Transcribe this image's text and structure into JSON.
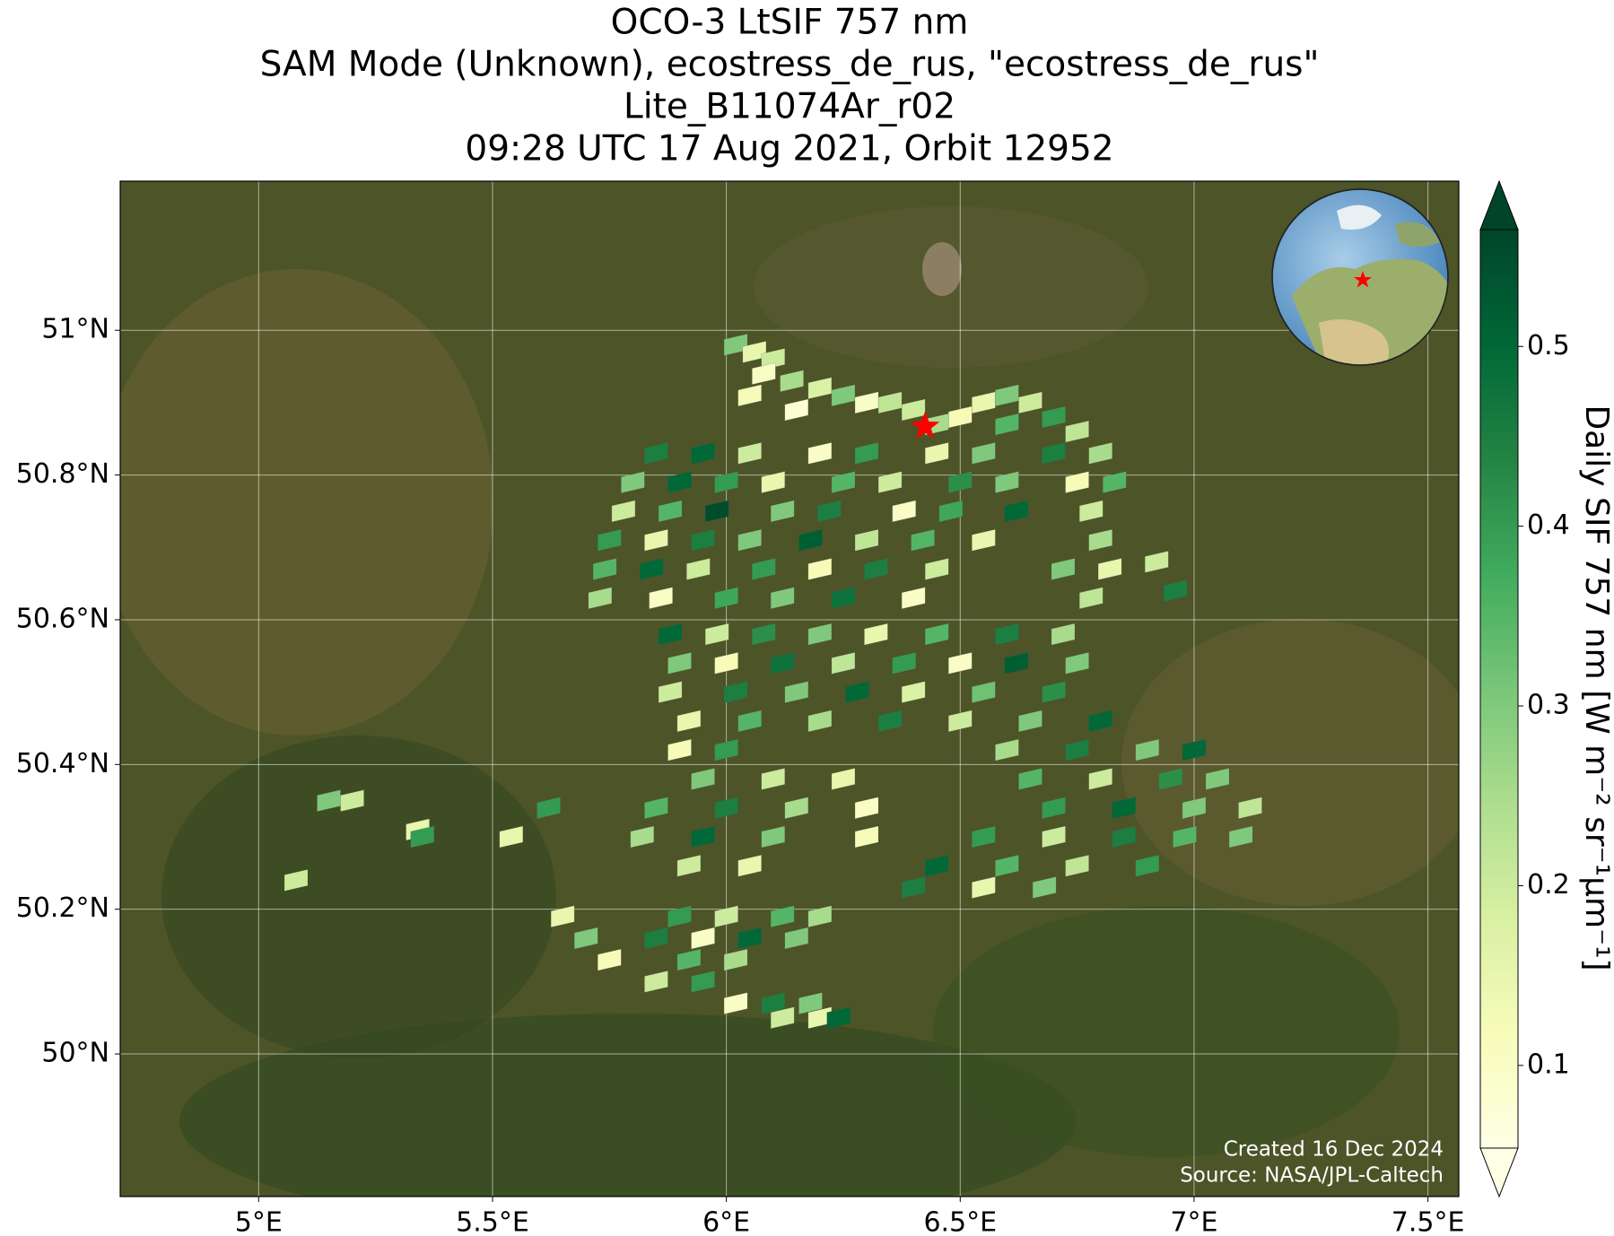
{
  "chart_data": {
    "type": "footprint-map",
    "title": [
      "OCO-3 LtSIF 757 nm",
      "SAM Mode (Unknown), ecostress_de_rus, \"ecostress_de_rus\"",
      "Lite_B11074Ar_r02",
      "09:28 UTC 17 Aug 2021, Orbit 12952"
    ],
    "xlim": [
      4.704,
      7.566
    ],
    "ylim": [
      49.803,
      51.206
    ],
    "xticks": [
      {
        "value": 5,
        "label": "5°E"
      },
      {
        "value": 5.5,
        "label": "5.5°E"
      },
      {
        "value": 6,
        "label": "6°E"
      },
      {
        "value": 6.5,
        "label": "6.5°E"
      },
      {
        "value": 7,
        "label": "7°E"
      },
      {
        "value": 7.5,
        "label": "7.5°E"
      }
    ],
    "yticks": [
      {
        "value": 50,
        "label": "50°N"
      },
      {
        "value": 50.2,
        "label": "50.2°N"
      },
      {
        "value": 50.4,
        "label": "50.4°N"
      },
      {
        "value": 50.6,
        "label": "50.6°N"
      },
      {
        "value": 50.8,
        "label": "50.8°N"
      },
      {
        "value": 51,
        "label": "51°N"
      }
    ],
    "grid": true,
    "colorbar": {
      "label": "Daily SIF 757 nm [W m⁻² sr⁻¹μm⁻¹]",
      "clim": [
        0.054,
        0.565
      ],
      "ticks": [
        0.1,
        0.2,
        0.3,
        0.4,
        0.5
      ],
      "colormap": [
        "#ffffe5",
        "#f7fcb9",
        "#d9f0a3",
        "#addd8e",
        "#78c679",
        "#41ab5d",
        "#238443",
        "#006837",
        "#004529"
      ]
    },
    "site": {
      "lon": 6.425,
      "lat": 50.867,
      "color": "#ff0000"
    },
    "footprints": {
      "lon": [
        6.02,
        6.06,
        6.1,
        6.08,
        6.14,
        6.2,
        6.05,
        6.25,
        6.3,
        6.35,
        6.15,
        6.4,
        6.55,
        6.6,
        6.65,
        6.7,
        6.5,
        6.45,
        6.6,
        6.75,
        5.85,
        5.95,
        6.05,
        6.2,
        6.3,
        6.45,
        6.55,
        6.7,
        6.8,
        5.8,
        5.9,
        6.0,
        6.1,
        6.25,
        6.35,
        6.5,
        6.6,
        6.75,
        6.83,
        5.78,
        5.88,
        5.98,
        6.12,
        6.22,
        6.38,
        6.48,
        6.62,
        6.78,
        5.75,
        5.85,
        5.95,
        6.05,
        6.18,
        6.3,
        6.42,
        6.55,
        6.8,
        5.74,
        5.84,
        5.94,
        6.08,
        6.2,
        6.32,
        6.45,
        6.72,
        6.82,
        5.73,
        5.86,
        6.0,
        6.12,
        6.25,
        6.4,
        6.78,
        5.88,
        5.98,
        6.08,
        6.2,
        6.32,
        6.45,
        6.6,
        6.72,
        5.9,
        6.0,
        6.12,
        6.25,
        6.38,
        6.5,
        6.62,
        6.75,
        5.88,
        6.02,
        6.15,
        6.28,
        6.4,
        6.55,
        6.7,
        5.92,
        6.05,
        6.2,
        6.35,
        6.5,
        6.65,
        6.8,
        5.9,
        6.0,
        6.6,
        6.75,
        6.9,
        7.0,
        5.95,
        6.1,
        6.25,
        6.65,
        6.8,
        6.95,
        7.05,
        5.85,
        6.0,
        6.15,
        6.3,
        6.7,
        6.85,
        7.0,
        7.12,
        5.82,
        5.95,
        6.1,
        6.3,
        6.55,
        6.7,
        6.85,
        6.98,
        7.1,
        5.92,
        6.05,
        6.45,
        6.6,
        6.75,
        6.9,
        6.4,
        6.55,
        6.68,
        5.65,
        5.9,
        6.0,
        6.12,
        6.2,
        5.7,
        5.85,
        5.95,
        6.05,
        6.15,
        5.75,
        5.92,
        6.02,
        5.85,
        5.95,
        6.02,
        6.1,
        6.18,
        6.12,
        6.2,
        6.24,
        5.15,
        5.2,
        5.34,
        5.35,
        5.08,
        5.62,
        5.54,
        6.92,
        6.96
      ],
      "lat": [
        50.98,
        50.97,
        50.96,
        50.94,
        50.93,
        50.92,
        50.91,
        50.91,
        50.9,
        50.9,
        50.89,
        50.89,
        50.9,
        50.91,
        50.9,
        50.88,
        50.88,
        50.87,
        50.87,
        50.86,
        50.83,
        50.83,
        50.83,
        50.83,
        50.83,
        50.83,
        50.83,
        50.83,
        50.83,
        50.79,
        50.79,
        50.79,
        50.79,
        50.79,
        50.79,
        50.79,
        50.79,
        50.79,
        50.79,
        50.75,
        50.75,
        50.75,
        50.75,
        50.75,
        50.75,
        50.75,
        50.75,
        50.75,
        50.71,
        50.71,
        50.71,
        50.71,
        50.71,
        50.71,
        50.71,
        50.71,
        50.71,
        50.67,
        50.67,
        50.67,
        50.67,
        50.67,
        50.67,
        50.67,
        50.67,
        50.67,
        50.63,
        50.63,
        50.63,
        50.63,
        50.63,
        50.63,
        50.63,
        50.58,
        50.58,
        50.58,
        50.58,
        50.58,
        50.58,
        50.58,
        50.58,
        50.54,
        50.54,
        50.54,
        50.54,
        50.54,
        50.54,
        50.54,
        50.54,
        50.5,
        50.5,
        50.5,
        50.5,
        50.5,
        50.5,
        50.5,
        50.46,
        50.46,
        50.46,
        50.46,
        50.46,
        50.46,
        50.46,
        50.42,
        50.42,
        50.42,
        50.42,
        50.42,
        50.42,
        50.38,
        50.38,
        50.38,
        50.38,
        50.38,
        50.38,
        50.38,
        50.34,
        50.34,
        50.34,
        50.34,
        50.34,
        50.34,
        50.34,
        50.34,
        50.3,
        50.3,
        50.3,
        50.3,
        50.3,
        50.3,
        50.3,
        50.3,
        50.3,
        50.26,
        50.26,
        50.26,
        50.26,
        50.26,
        50.26,
        50.23,
        50.23,
        50.23,
        50.19,
        50.19,
        50.19,
        50.19,
        50.19,
        50.16,
        50.16,
        50.16,
        50.16,
        50.16,
        50.13,
        50.13,
        50.13,
        50.1,
        50.1,
        50.07,
        50.07,
        50.07,
        50.05,
        50.05,
        50.05,
        50.35,
        50.35,
        50.31,
        50.3,
        50.24,
        50.34,
        50.3,
        50.68,
        50.64
      ],
      "values": [
        0.3,
        0.15,
        0.2,
        0.1,
        0.25,
        0.18,
        0.12,
        0.3,
        0.1,
        0.22,
        0.08,
        0.2,
        0.15,
        0.3,
        0.2,
        0.4,
        0.12,
        0.25,
        0.35,
        0.22,
        0.45,
        0.5,
        0.2,
        0.1,
        0.4,
        0.15,
        0.3,
        0.45,
        0.25,
        0.3,
        0.5,
        0.4,
        0.15,
        0.35,
        0.2,
        0.42,
        0.3,
        0.12,
        0.35,
        0.2,
        0.35,
        0.55,
        0.3,
        0.45,
        0.1,
        0.38,
        0.5,
        0.2,
        0.4,
        0.15,
        0.45,
        0.3,
        0.52,
        0.22,
        0.35,
        0.15,
        0.25,
        0.35,
        0.5,
        0.2,
        0.4,
        0.12,
        0.45,
        0.2,
        0.3,
        0.15,
        0.25,
        0.1,
        0.38,
        0.3,
        0.48,
        0.1,
        0.22,
        0.5,
        0.2,
        0.42,
        0.3,
        0.15,
        0.35,
        0.45,
        0.25,
        0.3,
        0.12,
        0.48,
        0.22,
        0.4,
        0.1,
        0.52,
        0.3,
        0.2,
        0.45,
        0.3,
        0.5,
        0.18,
        0.32,
        0.42,
        0.15,
        0.35,
        0.25,
        0.45,
        0.2,
        0.3,
        0.5,
        0.12,
        0.4,
        0.25,
        0.45,
        0.3,
        0.5,
        0.3,
        0.2,
        0.15,
        0.35,
        0.2,
        0.42,
        0.3,
        0.35,
        0.45,
        0.25,
        0.1,
        0.4,
        0.5,
        0.3,
        0.22,
        0.25,
        0.5,
        0.3,
        0.12,
        0.4,
        0.2,
        0.45,
        0.35,
        0.3,
        0.2,
        0.15,
        0.5,
        0.35,
        0.22,
        0.4,
        0.45,
        0.15,
        0.3,
        0.15,
        0.4,
        0.2,
        0.35,
        0.25,
        0.3,
        0.45,
        0.1,
        0.5,
        0.3,
        0.12,
        0.35,
        0.25,
        0.2,
        0.4,
        0.1,
        0.45,
        0.3,
        0.2,
        0.15,
        0.5,
        0.3,
        0.2,
        0.15,
        0.4,
        0.2,
        0.4,
        0.15,
        0.2,
        0.45
      ]
    },
    "notes": [
      "Created 16 Dec 2024",
      "Source: NASA/JPL-Caltech"
    ]
  }
}
